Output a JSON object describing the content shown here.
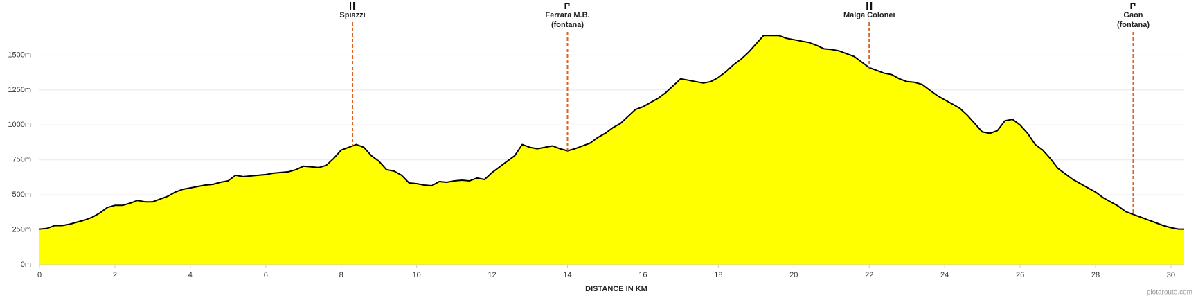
{
  "chart_data": {
    "type": "area",
    "x_label": "DISTANCE IN KM",
    "watermark": "plotaroute.com",
    "color": "#ffff00",
    "line_color": "#000000",
    "marker_color": "#e06020",
    "grid": true,
    "xlim": [
      0,
      30.35
    ],
    "ylim": [
      0,
      1750
    ],
    "xticks": [
      0,
      2,
      4,
      6,
      8,
      10,
      12,
      14,
      16,
      18,
      20,
      22,
      24,
      26,
      28,
      30
    ],
    "yticks": [
      {
        "value": 0,
        "label": "0m"
      },
      {
        "value": 250,
        "label": "250m"
      },
      {
        "value": 500,
        "label": "500m"
      },
      {
        "value": 750,
        "label": "750m"
      },
      {
        "value": 1000,
        "label": "1000m"
      },
      {
        "value": 1250,
        "label": "1250m"
      },
      {
        "value": 1500,
        "label": "1500m"
      }
    ],
    "x": [
      0,
      0.2,
      0.4,
      0.6,
      0.8,
      1.0,
      1.2,
      1.4,
      1.6,
      1.8,
      2.0,
      2.2,
      2.4,
      2.6,
      2.8,
      3.0,
      3.2,
      3.4,
      3.6,
      3.8,
      4.0,
      4.2,
      4.4,
      4.6,
      4.8,
      5.0,
      5.2,
      5.4,
      5.6,
      5.8,
      6.0,
      6.2,
      6.4,
      6.6,
      6.8,
      7.0,
      7.2,
      7.4,
      7.6,
      7.8,
      8.0,
      8.2,
      8.4,
      8.6,
      8.8,
      9.0,
      9.2,
      9.4,
      9.6,
      9.8,
      10.0,
      10.2,
      10.4,
      10.6,
      10.8,
      11.0,
      11.2,
      11.4,
      11.6,
      11.8,
      12.0,
      12.2,
      12.4,
      12.6,
      12.8,
      13.0,
      13.2,
      13.4,
      13.6,
      13.8,
      14.0,
      14.2,
      14.4,
      14.6,
      14.8,
      15.0,
      15.2,
      15.4,
      15.6,
      15.8,
      16.0,
      16.2,
      16.4,
      16.6,
      16.8,
      17.0,
      17.2,
      17.4,
      17.6,
      17.8,
      18.0,
      18.2,
      18.4,
      18.6,
      18.8,
      19.0,
      19.2,
      19.4,
      19.6,
      19.8,
      20.0,
      20.2,
      20.4,
      20.6,
      20.8,
      21.0,
      21.2,
      21.4,
      21.6,
      21.8,
      22.0,
      22.2,
      22.4,
      22.6,
      22.8,
      23.0,
      23.2,
      23.4,
      23.6,
      23.8,
      24.0,
      24.2,
      24.4,
      24.6,
      24.8,
      25.0,
      25.2,
      25.4,
      25.6,
      25.8,
      26.0,
      26.2,
      26.4,
      26.6,
      26.8,
      27.0,
      27.2,
      27.4,
      27.6,
      27.8,
      28.0,
      28.2,
      28.4,
      28.6,
      28.8,
      29.0,
      29.2,
      29.4,
      29.6,
      29.8,
      30.0,
      30.2,
      30.35
    ],
    "values": [
      255,
      260,
      280,
      280,
      290,
      305,
      320,
      340,
      370,
      410,
      425,
      425,
      440,
      460,
      450,
      450,
      470,
      490,
      520,
      540,
      550,
      560,
      570,
      575,
      590,
      600,
      640,
      630,
      635,
      640,
      645,
      655,
      660,
      665,
      680,
      705,
      700,
      695,
      710,
      760,
      820,
      840,
      860,
      840,
      780,
      740,
      680,
      670,
      640,
      585,
      580,
      570,
      565,
      595,
      590,
      600,
      605,
      600,
      620,
      610,
      660,
      700,
      740,
      780,
      860,
      840,
      830,
      840,
      850,
      830,
      815,
      830,
      850,
      870,
      910,
      940,
      980,
      1010,
      1060,
      1110,
      1130,
      1160,
      1190,
      1230,
      1280,
      1330,
      1320,
      1310,
      1300,
      1310,
      1340,
      1380,
      1430,
      1470,
      1520,
      1580,
      1640,
      1640,
      1640,
      1620,
      1610,
      1600,
      1590,
      1570,
      1545,
      1540,
      1530,
      1510,
      1490,
      1450,
      1410,
      1390,
      1370,
      1360,
      1330,
      1310,
      1305,
      1290,
      1250,
      1210,
      1180,
      1150,
      1120,
      1070,
      1010,
      950,
      940,
      960,
      1030,
      1040,
      1000,
      940,
      860,
      820,
      760,
      690,
      650,
      610,
      580,
      550,
      520,
      480,
      450,
      420,
      380,
      360,
      340,
      320,
      300,
      280,
      265,
      255,
      255
    ],
    "markers": [
      {
        "km": 8.3,
        "label": [
          "Spiazzi"
        ],
        "icon": "restaurant"
      },
      {
        "km": 14.0,
        "label": [
          "Ferrara M.B.",
          "(fontana)"
        ],
        "icon": "fountain"
      },
      {
        "km": 22.0,
        "label": [
          "Malga Colonei"
        ],
        "icon": "restaurant"
      },
      {
        "km": 29.0,
        "label": [
          "Gaon",
          "(fontana)"
        ],
        "icon": "fountain"
      }
    ]
  }
}
